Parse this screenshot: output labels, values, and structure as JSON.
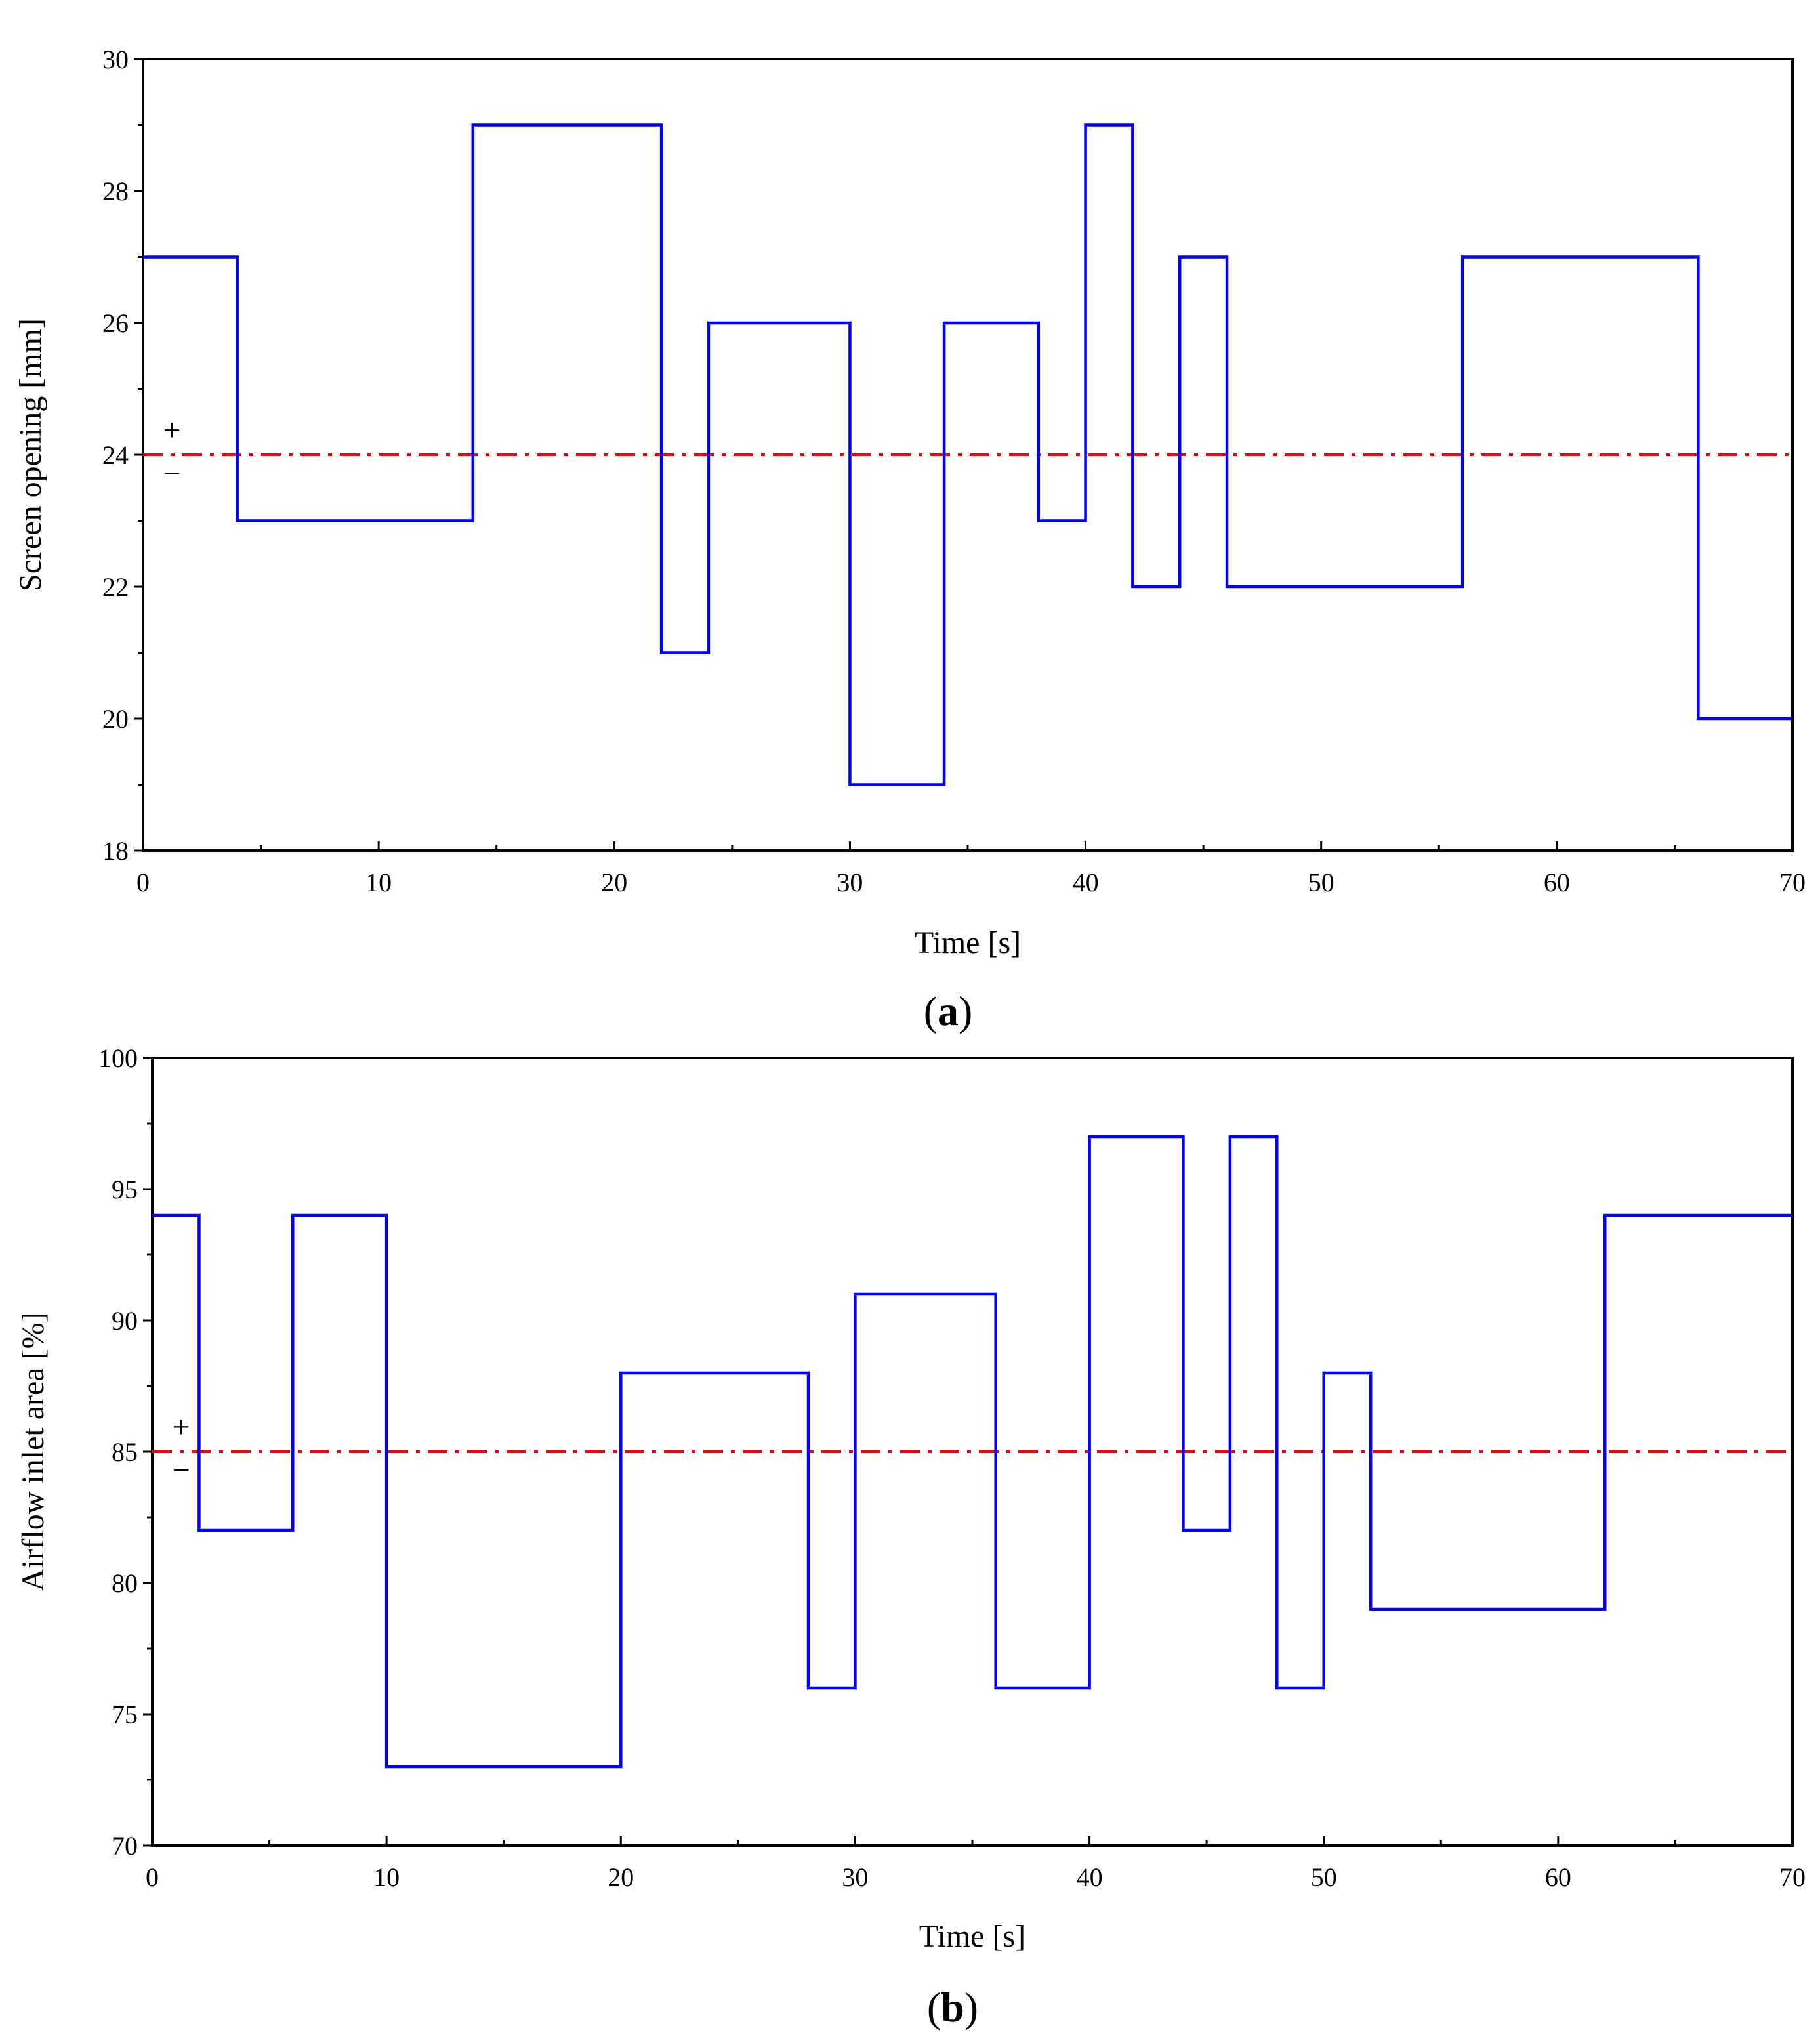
{
  "colors": {
    "signal": "#0000ff",
    "reference": "#ff0000",
    "axes": "#000000",
    "background": "#ffffff"
  },
  "chart_data": [
    {
      "type": "line",
      "step": true,
      "panel_label": "a",
      "title": "",
      "xlabel": "Time [s]",
      "ylabel": "Screen opening [mm]",
      "xlim": [
        0,
        70
      ],
      "ylim": [
        18,
        30
      ],
      "xticks": [
        "0",
        "10",
        "20",
        "30",
        "40",
        "50",
        "60",
        "70"
      ],
      "yticks": [
        "18",
        "20",
        "22",
        "24",
        "26",
        "28",
        "30"
      ],
      "grid": false,
      "reference": {
        "value": 24,
        "style": "dash-dot",
        "plus_label": "+",
        "minus_label": "−"
      },
      "series": [
        {
          "name": "Screen opening",
          "points": [
            [
              0,
              27
            ],
            [
              4,
              23
            ],
            [
              14,
              29
            ],
            [
              22,
              21
            ],
            [
              24,
              26
            ],
            [
              30,
              19
            ],
            [
              34,
              26
            ],
            [
              38,
              23
            ],
            [
              40,
              29
            ],
            [
              42,
              22
            ],
            [
              44,
              27
            ],
            [
              46,
              22
            ],
            [
              56,
              27
            ],
            [
              66,
              20
            ],
            [
              70,
              20
            ]
          ]
        }
      ]
    },
    {
      "type": "line",
      "step": true,
      "panel_label": "b",
      "title": "",
      "xlabel": "Time [s]",
      "ylabel": "Airflow inlet area [%]",
      "xlim": [
        0,
        70
      ],
      "ylim": [
        70,
        100
      ],
      "xticks": [
        "0",
        "10",
        "20",
        "30",
        "40",
        "50",
        "60",
        "70"
      ],
      "yticks": [
        "70",
        "75",
        "80",
        "85",
        "90",
        "95",
        "100"
      ],
      "grid": false,
      "reference": {
        "value": 85,
        "style": "dash-dot",
        "plus_label": "+",
        "minus_label": "−"
      },
      "series": [
        {
          "name": "Airflow inlet area",
          "points": [
            [
              0,
              94
            ],
            [
              2,
              82
            ],
            [
              6,
              94
            ],
            [
              10,
              73
            ],
            [
              20,
              88
            ],
            [
              28,
              76
            ],
            [
              30,
              91
            ],
            [
              36,
              76
            ],
            [
              40,
              97
            ],
            [
              44,
              82
            ],
            [
              46,
              97
            ],
            [
              48,
              76
            ],
            [
              50,
              88
            ],
            [
              52,
              79
            ],
            [
              62,
              94
            ],
            [
              70,
              94
            ]
          ]
        }
      ]
    }
  ]
}
